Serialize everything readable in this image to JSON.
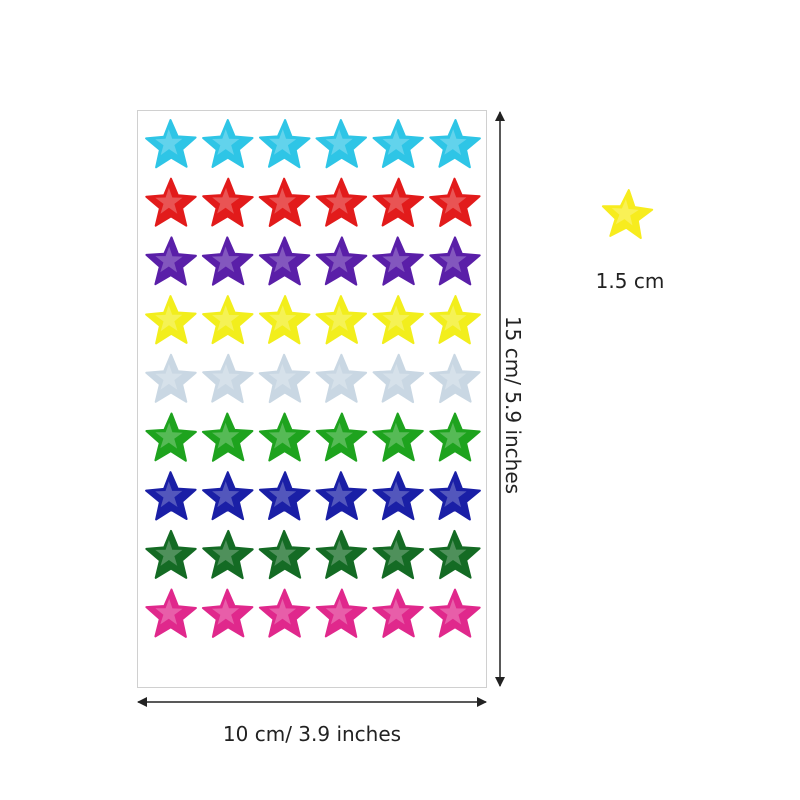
{
  "sheet": {
    "rows": [
      {
        "color": "#2ec5e6",
        "name": "cyan"
      },
      {
        "color": "#e21b1b",
        "name": "red"
      },
      {
        "color": "#5a1fa8",
        "name": "purple"
      },
      {
        "color": "#f2ee1c",
        "name": "yellow"
      },
      {
        "color": "#c9d7e3",
        "name": "silver"
      },
      {
        "color": "#1ea31e",
        "name": "green"
      },
      {
        "color": "#1a1fa6",
        "name": "blue"
      },
      {
        "color": "#146b24",
        "name": "dark-green"
      },
      {
        "color": "#e0288c",
        "name": "pink"
      }
    ],
    "columns": 6
  },
  "dimensions": {
    "width_label": "10 cm/ 3.9 inches",
    "height_label": "15 cm/ 5.9 inches",
    "sample_label": "1.5 cm"
  },
  "sample_star": {
    "color": "#f7ec1e"
  }
}
